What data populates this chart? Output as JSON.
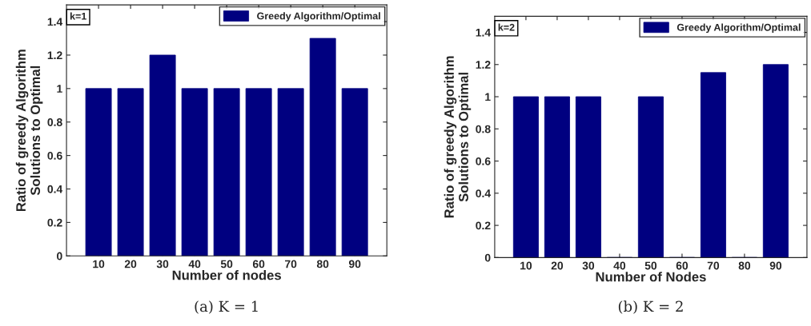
{
  "chart_data": [
    {
      "type": "bar",
      "categories": [
        "10",
        "20",
        "30",
        "40",
        "50",
        "60",
        "70",
        "80",
        "90"
      ],
      "series": [
        {
          "name": "Greedy Algorithm/Optimal",
          "color": "#000080",
          "values": [
            1,
            1,
            1.2,
            1,
            1,
            1,
            1,
            1.3,
            1
          ]
        }
      ],
      "xlabel": "Number of nodes",
      "ylabel": "Ratio of greedy Algorithm\nSolutions to Optimal",
      "ylim": [
        0,
        1.5
      ],
      "yticks": [
        0,
        0.2,
        0.4,
        0.6,
        0.8,
        1,
        1.2,
        1.4
      ],
      "legend": "top right",
      "annotations": [
        "k=1",
        "(a) K = 1"
      ]
    },
    {
      "type": "bar",
      "categories": [
        "10",
        "20",
        "30",
        "40",
        "50",
        "60",
        "70",
        "80",
        "90"
      ],
      "series": [
        {
          "name": "Greedy Algorithm/Optimal",
          "color": "#000080",
          "values": [
            1,
            1,
            1,
            0,
            1,
            0,
            1.15,
            0,
            1.2
          ]
        }
      ],
      "xlabel": "Number of Nodes",
      "ylabel": "Ratio of greedy Algorithm\nSolutions to Optimal",
      "ylim": [
        0,
        1.5
      ],
      "yticks": [
        0,
        0.2,
        0.4,
        0.6,
        0.8,
        1,
        1.2,
        1.4
      ],
      "legend": "top right",
      "annotations": [
        "k=2",
        "(b) K = 2"
      ]
    }
  ]
}
